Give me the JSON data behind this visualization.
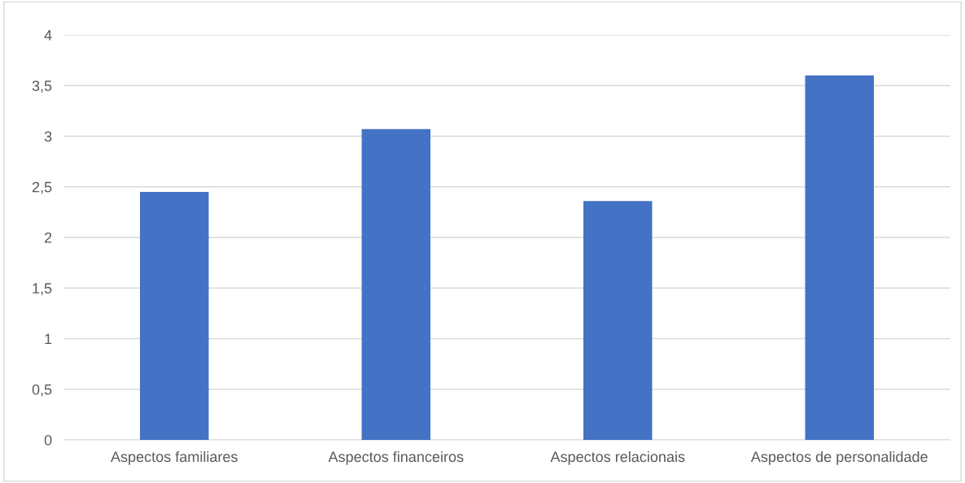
{
  "chart_data": {
    "type": "bar",
    "categories": [
      "Aspectos familiares",
      "Aspectos financeiros",
      "Aspectos relacionais",
      "Aspectos de personalidade"
    ],
    "values": [
      2.45,
      3.07,
      2.36,
      3.6
    ],
    "color": "#4472c4",
    "ylim": [
      0,
      4
    ],
    "yticks": [
      0,
      {
        "value": 0.5,
        "label": "0,5"
      },
      1,
      {
        "value": 1.5,
        "label": "1,5"
      },
      2,
      {
        "value": 2.5,
        "label": "2,5"
      },
      3,
      {
        "value": 3.5,
        "label": "3,5"
      },
      4
    ],
    "grid": "y"
  }
}
